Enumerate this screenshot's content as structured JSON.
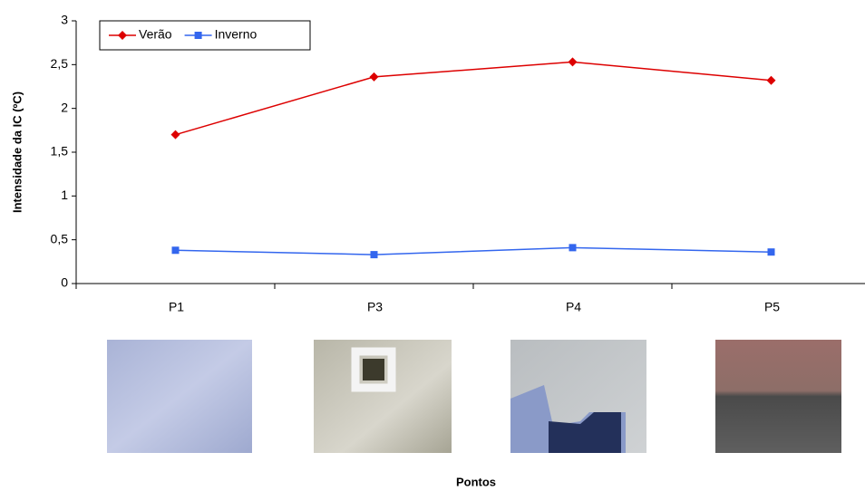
{
  "chart_data": {
    "type": "line",
    "y_label": "Intensidade da IC (ºC)",
    "x_label": "Pontos",
    "categories": [
      "P1",
      "P3",
      "P4",
      "P5"
    ],
    "series": [
      {
        "name": "Verão",
        "color": "#dd0000",
        "marker": "diamond",
        "values": [
          1.7,
          2.36,
          2.53,
          2.32
        ]
      },
      {
        "name": "Inverno",
        "color": "#3366ee",
        "marker": "square",
        "values": [
          0.38,
          0.33,
          0.41,
          0.36
        ]
      }
    ],
    "ylim": [
      0,
      3
    ],
    "yticks": [
      0,
      {
        "value": 0.5,
        "label": "0,5"
      },
      1,
      {
        "value": 1.5,
        "label": "1,5"
      },
      2,
      {
        "value": 2.5,
        "label": "2,5"
      },
      3
    ],
    "legend": "upper left"
  }
}
